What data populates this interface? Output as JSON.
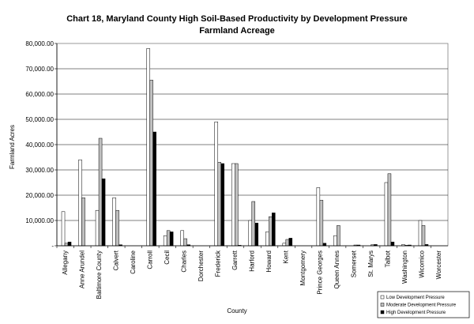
{
  "chart_data": {
    "type": "bar",
    "title": "Chart 18, Maryland County High Soil-Based Productivity by Development Pressure",
    "subtitle": "Farmland Acreage",
    "xlabel": "County",
    "ylabel": "Farmland Acres",
    "ylim": [
      0,
      80000
    ],
    "yticks": [
      "-",
      "10,000.00",
      "20,000.00",
      "30,000.00",
      "40,000.00",
      "50,000.00",
      "60,000.00",
      "70,000.00",
      "80,000.00"
    ],
    "grid": true,
    "legend_position": "bottom-right",
    "categories": [
      "Allegany",
      "Anne Arundel",
      "Baltimore County",
      "Calvert",
      "Caroline",
      "Carroll",
      "Cecil",
      "Charles",
      "Dorchester",
      "Frederick",
      "Garrett",
      "Harford",
      "Howard",
      "Kent",
      "Montgomery",
      "Prince Georges",
      "Queen Annes",
      "Somerset",
      "St. Marys",
      "Talbot",
      "Washington",
      "Wicomico",
      "Worcester"
    ],
    "series": [
      {
        "name": "Low Development Pressure",
        "color": "#ffffff",
        "values": [
          13500,
          34000,
          14000,
          19000,
          0,
          78000,
          4000,
          6000,
          0,
          49000,
          32500,
          10000,
          5500,
          1000,
          0,
          23000,
          4000,
          0,
          0,
          25000,
          500,
          10000,
          0
        ]
      },
      {
        "name": "Moderate Development Pressure",
        "color": "#c0c0c0",
        "values": [
          1000,
          19000,
          42500,
          14000,
          0,
          65500,
          6000,
          2800,
          0,
          33000,
          32500,
          17500,
          11500,
          2500,
          0,
          18000,
          8000,
          300,
          400,
          28500,
          200,
          8000,
          0
        ]
      },
      {
        "name": "High Development Pressure",
        "color": "#000000",
        "values": [
          1500,
          0,
          26500,
          400,
          0,
          45000,
          5500,
          400,
          0,
          32500,
          200,
          9000,
          13000,
          3000,
          0,
          1000,
          0,
          300,
          500,
          1500,
          300,
          500,
          0
        ]
      }
    ]
  }
}
